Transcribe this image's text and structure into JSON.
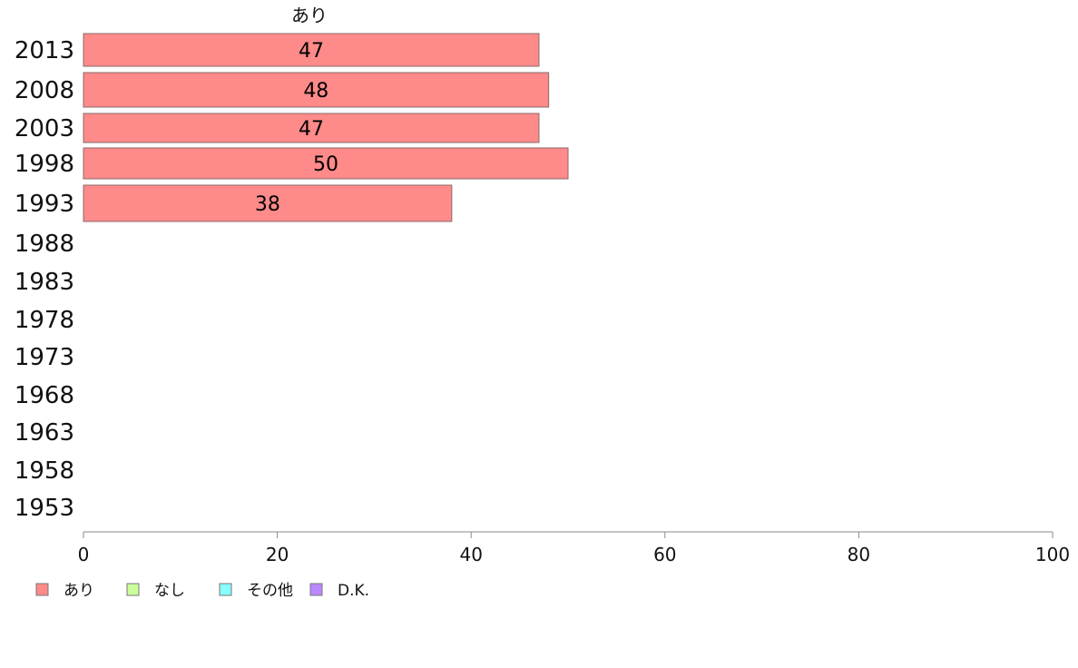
{
  "chart_data": {
    "type": "bar",
    "orientation": "horizontal",
    "stacked": true,
    "categories": [
      "2013",
      "2008",
      "2003",
      "1998",
      "1993",
      "1988",
      "1983",
      "1978",
      "1973",
      "1968",
      "1963",
      "1958",
      "1953"
    ],
    "series": [
      {
        "name": "あり",
        "color": "#ff8a8a",
        "values": [
          47,
          48,
          47,
          50,
          38,
          null,
          null,
          null,
          null,
          null,
          null,
          null,
          null
        ]
      },
      {
        "name": "なし",
        "color": "#ccff99",
        "values": [
          null,
          null,
          null,
          null,
          null,
          null,
          null,
          null,
          null,
          null,
          null,
          null,
          null
        ]
      },
      {
        "name": "その他",
        "color": "#88ffff",
        "values": [
          null,
          null,
          null,
          null,
          null,
          null,
          null,
          null,
          null,
          null,
          null,
          null,
          null
        ]
      },
      {
        "name": "D.K.",
        "color": "#bb88ff",
        "values": [
          null,
          null,
          null,
          null,
          null,
          null,
          null,
          null,
          null,
          null,
          null,
          null,
          null
        ]
      }
    ],
    "data_labels": [
      47,
      48,
      47,
      50,
      38
    ],
    "top_label": "あり",
    "x_ticks": [
      0,
      20,
      40,
      60,
      80,
      100
    ],
    "xlim": [
      0,
      100
    ],
    "grid": false,
    "legend_position": "bottom-left"
  }
}
